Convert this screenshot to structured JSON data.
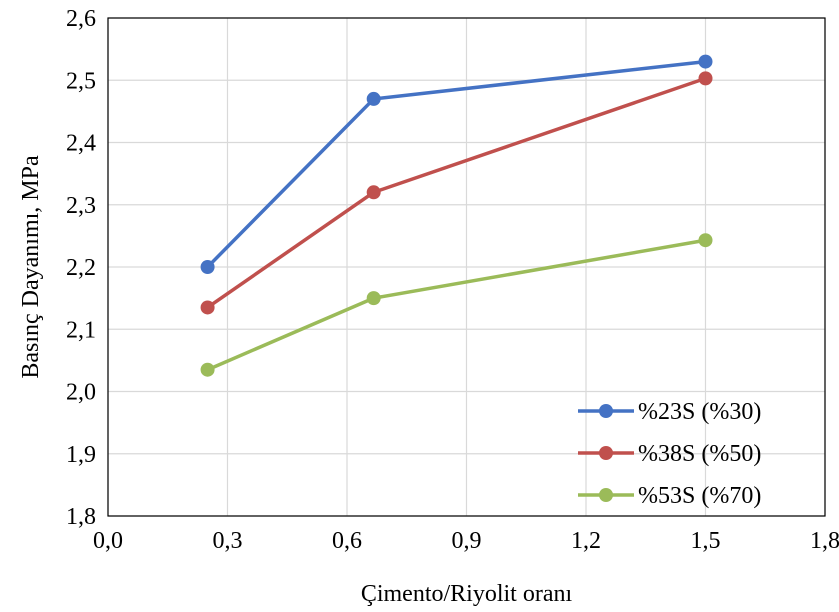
{
  "chart_data": {
    "type": "line",
    "title": "",
    "xlabel": "Çimento/Riyolit oranı",
    "ylabel": "Basınç Dayanımı, MPa",
    "xlim": [
      0.0,
      1.8
    ],
    "ylim": [
      1.8,
      2.6
    ],
    "xticks": [
      0.0,
      0.3,
      0.6,
      0.9,
      1.2,
      1.5,
      1.8
    ],
    "xtick_labels": [
      "0,0",
      "0,3",
      "0,6",
      "0,9",
      "1,2",
      "1,5",
      "1,8"
    ],
    "yticks": [
      1.8,
      1.9,
      2.0,
      2.1,
      2.2,
      2.3,
      2.4,
      2.5,
      2.6
    ],
    "ytick_labels": [
      "1,8",
      "1,9",
      "2,0",
      "2,1",
      "2,2",
      "2,3",
      "2,4",
      "2,5",
      "2,6"
    ],
    "grid": true,
    "legend_position": "bottom-right",
    "x": [
      0.25,
      0.667,
      1.5
    ],
    "series": [
      {
        "name": "%23S (%30)",
        "color": "#4472C4",
        "values": [
          2.2,
          2.47,
          2.53
        ]
      },
      {
        "name": "%38S (%50)",
        "color": "#C0504D",
        "values": [
          2.135,
          2.32,
          2.503
        ]
      },
      {
        "name": "%53S (%70)",
        "color": "#9BBB59",
        "values": [
          2.035,
          2.15,
          2.243
        ]
      }
    ]
  }
}
